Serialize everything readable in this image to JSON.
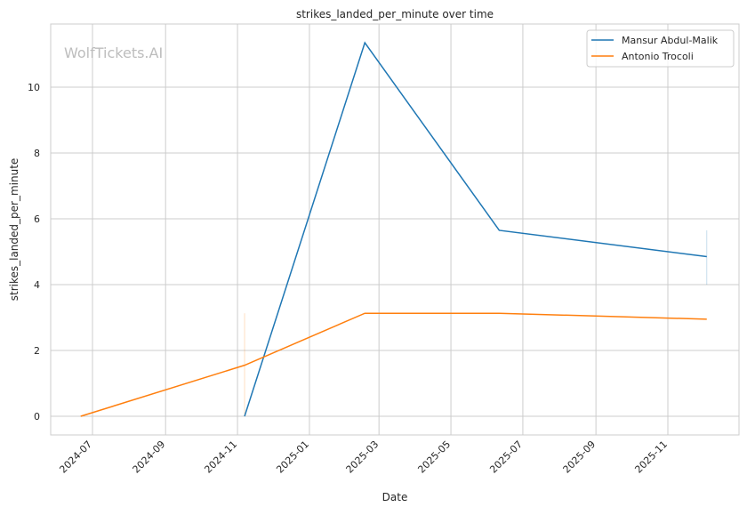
{
  "chart_data": {
    "type": "line",
    "title": "strikes_landed_per_minute over time",
    "xlabel": "Date",
    "ylabel": "strikes_landed_per_minute",
    "watermark": "WolfTickets.AI",
    "x_ticks": [
      "2024-07",
      "2024-09",
      "2024-11",
      "2025-01",
      "2025-03",
      "2025-05",
      "2025-07",
      "2025-09",
      "2025-11"
    ],
    "y_ticks": [
      0,
      2,
      4,
      6,
      8,
      10
    ],
    "ylim": [
      -0.55,
      11.9
    ],
    "xlim": [
      "2024-06-11",
      "2025-12-31"
    ],
    "grid": true,
    "legend_position": "top-right",
    "series": [
      {
        "name": "Mansur Abdul-Malik",
        "color": "#1f77b4",
        "x": [
          "2024-11-07",
          "2025-02-17",
          "2025-06-11",
          "2025-12-04"
        ],
        "y": [
          0,
          11.35,
          5.65,
          4.85
        ],
        "ci": [
          {
            "x": "2025-12-04",
            "low": 4.0,
            "high": 5.65
          }
        ]
      },
      {
        "name": "Antonio Trocoli",
        "color": "#ff7f0e",
        "x": [
          "2024-06-21",
          "2024-11-07",
          "2025-02-17",
          "2025-06-11",
          "2025-12-04"
        ],
        "y": [
          0,
          1.55,
          3.13,
          3.13,
          2.95
        ],
        "ci": [
          {
            "x": "2024-11-07",
            "low": 0,
            "high": 3.13
          }
        ]
      }
    ]
  }
}
